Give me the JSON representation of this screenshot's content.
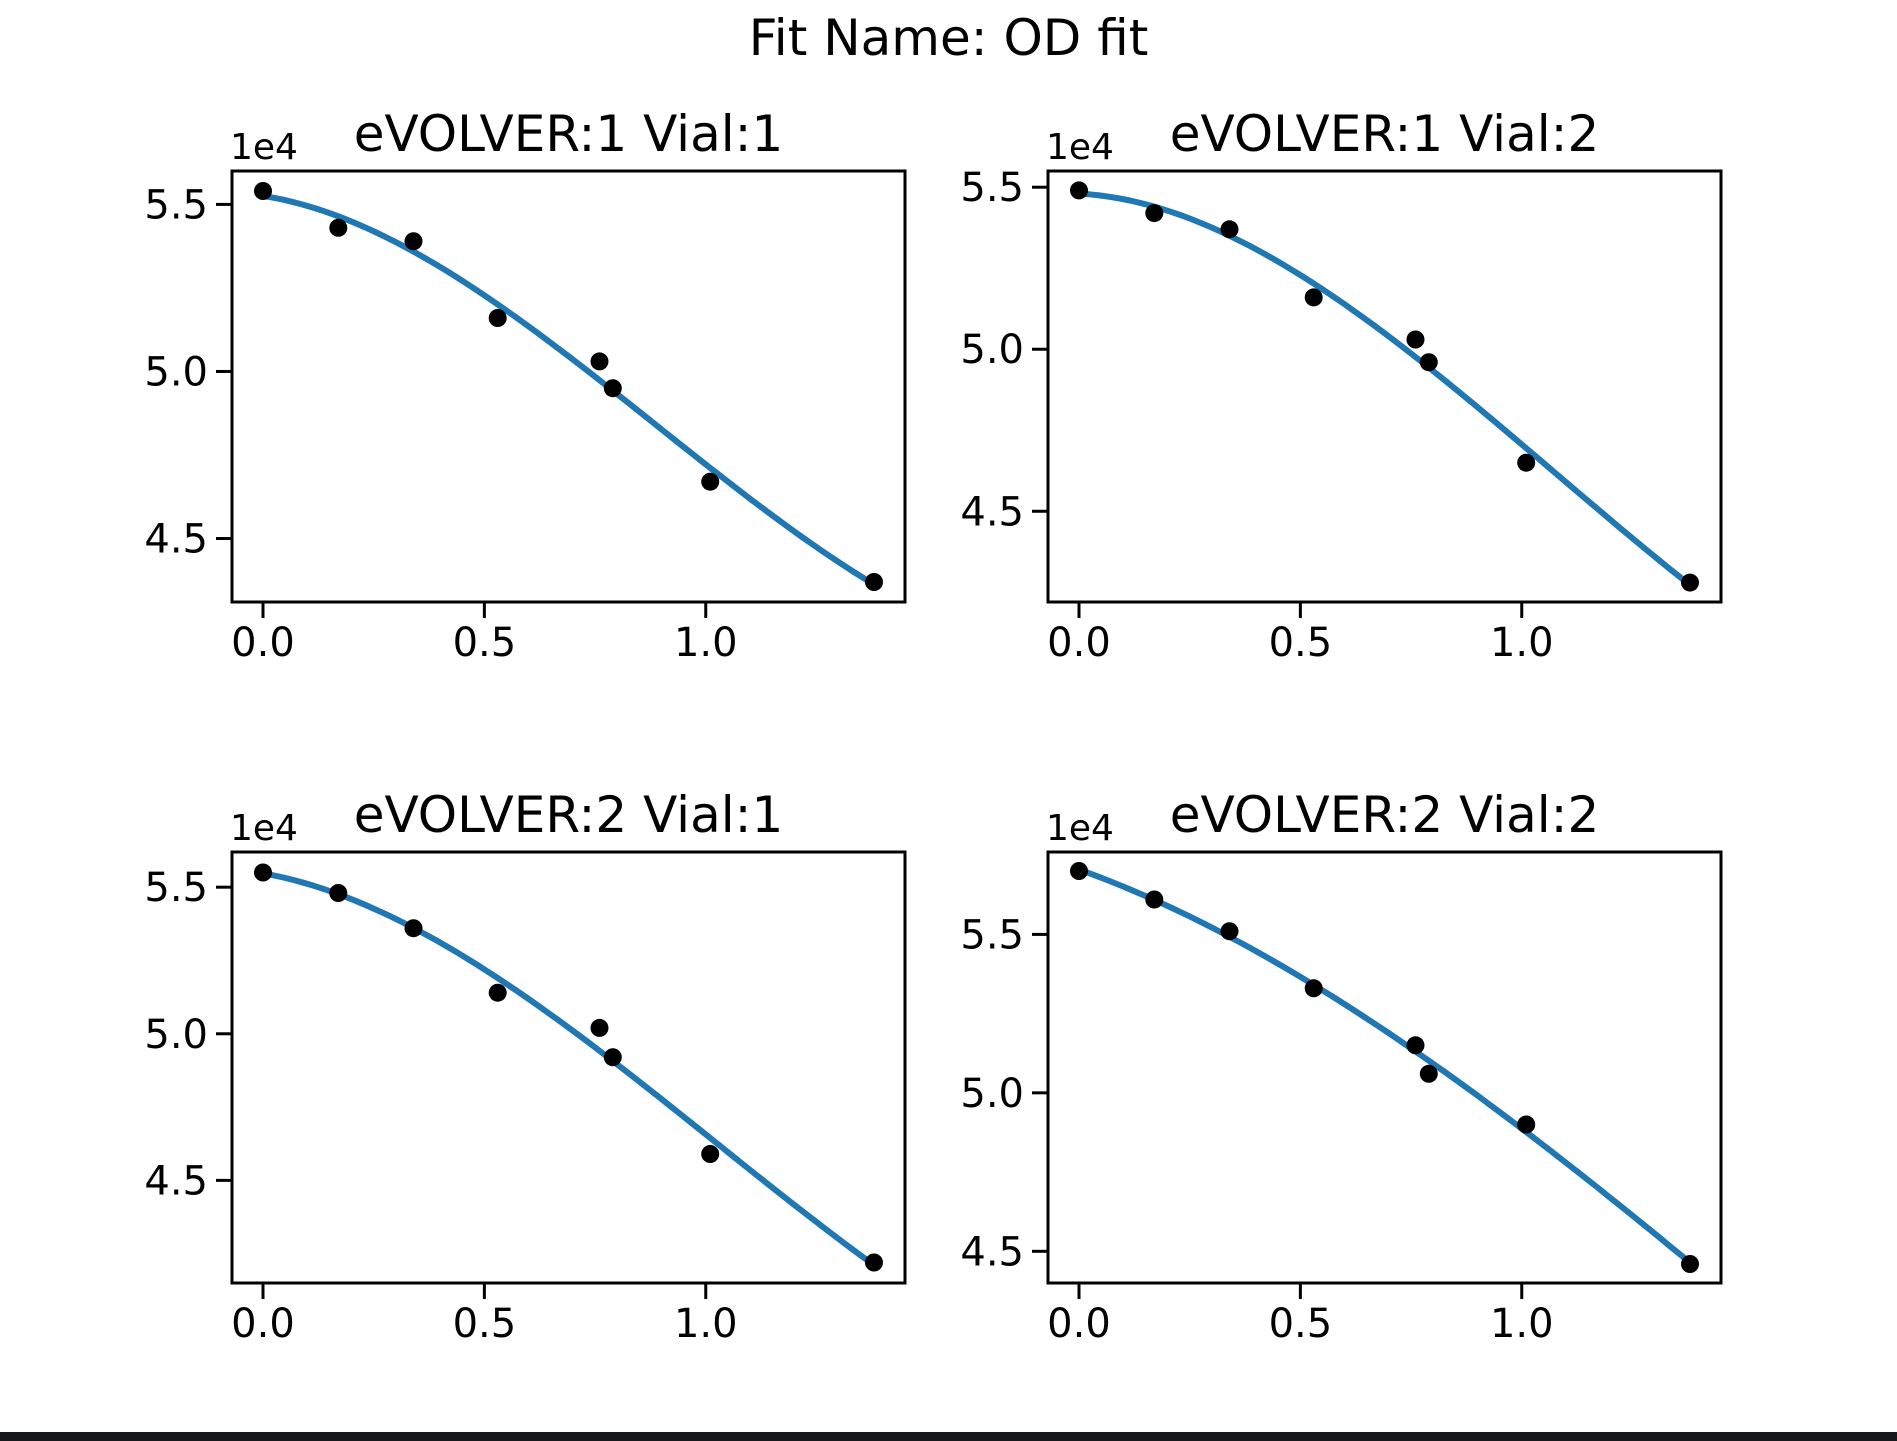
{
  "figure": {
    "suptitle": "Fit Name: OD fit",
    "background_color": "#ffffff"
  },
  "window": {
    "bottom_bar_color": "#15171a"
  },
  "chart_data": [
    {
      "type": "scatter",
      "title": "eVOLVER:1 Vial:1",
      "y_offset_label": "1e4",
      "x": [
        0.0,
        0.17,
        0.34,
        0.53,
        0.76,
        0.79,
        1.01,
        1.38
      ],
      "y": [
        5.54,
        5.43,
        5.39,
        5.16,
        5.03,
        4.95,
        4.67,
        4.37
      ],
      "fit_line": {
        "type": "cubic_polynomial",
        "color": "#1f77b4"
      },
      "marker_color": "#000000",
      "xlim": [
        -0.07,
        1.45
      ],
      "ylim": [
        4.31,
        5.6
      ],
      "x_ticks": [
        0.0,
        0.5,
        1.0
      ],
      "y_ticks": [
        4.5,
        5.0,
        5.5
      ],
      "x_tick_labels": [
        "0.0",
        "0.5",
        "1.0"
      ],
      "y_tick_labels": [
        "4.5",
        "5.0",
        "5.5"
      ],
      "grid": false,
      "legend": "none"
    },
    {
      "type": "scatter",
      "title": "eVOLVER:1 Vial:2",
      "y_offset_label": "1e4",
      "x": [
        0.0,
        0.17,
        0.34,
        0.53,
        0.76,
        0.79,
        1.01,
        1.38
      ],
      "y": [
        5.49,
        5.42,
        5.37,
        5.16,
        5.03,
        4.96,
        4.65,
        4.28
      ],
      "fit_line": {
        "type": "cubic_polynomial",
        "color": "#1f77b4"
      },
      "marker_color": "#000000",
      "xlim": [
        -0.07,
        1.45
      ],
      "ylim": [
        4.22,
        5.55
      ],
      "x_ticks": [
        0.0,
        0.5,
        1.0
      ],
      "y_ticks": [
        4.5,
        5.0,
        5.5
      ],
      "x_tick_labels": [
        "0.0",
        "0.5",
        "1.0"
      ],
      "y_tick_labels": [
        "4.5",
        "5.0",
        "5.5"
      ],
      "grid": false,
      "legend": "none"
    },
    {
      "type": "scatter",
      "title": "eVOLVER:2 Vial:1",
      "y_offset_label": "1e4",
      "x": [
        0.0,
        0.17,
        0.34,
        0.53,
        0.76,
        0.79,
        1.01,
        1.38
      ],
      "y": [
        5.55,
        5.48,
        5.36,
        5.14,
        5.02,
        4.92,
        4.59,
        4.22
      ],
      "fit_line": {
        "type": "cubic_polynomial",
        "color": "#1f77b4"
      },
      "marker_color": "#000000",
      "xlim": [
        -0.07,
        1.45
      ],
      "ylim": [
        4.15,
        5.62
      ],
      "x_ticks": [
        0.0,
        0.5,
        1.0
      ],
      "y_ticks": [
        4.5,
        5.0,
        5.5
      ],
      "x_tick_labels": [
        "0.0",
        "0.5",
        "1.0"
      ],
      "y_tick_labels": [
        "4.5",
        "5.0",
        "5.5"
      ],
      "grid": false,
      "legend": "none"
    },
    {
      "type": "scatter",
      "title": "eVOLVER:2 Vial:2",
      "y_offset_label": "1e4",
      "x": [
        0.0,
        0.17,
        0.34,
        0.53,
        0.76,
        0.79,
        1.01,
        1.38
      ],
      "y": [
        5.7,
        5.61,
        5.51,
        5.33,
        5.15,
        5.06,
        4.9,
        4.46
      ],
      "fit_line": {
        "type": "cubic_polynomial",
        "color": "#1f77b4"
      },
      "marker_color": "#000000",
      "xlim": [
        -0.07,
        1.45
      ],
      "ylim": [
        4.4,
        5.76
      ],
      "x_ticks": [
        0.0,
        0.5,
        1.0
      ],
      "y_ticks": [
        4.5,
        5.0,
        5.5
      ],
      "x_tick_labels": [
        "0.0",
        "0.5",
        "1.0"
      ],
      "y_tick_labels": [
        "4.5",
        "5.0",
        "5.5"
      ],
      "grid": false,
      "legend": "none"
    }
  ]
}
